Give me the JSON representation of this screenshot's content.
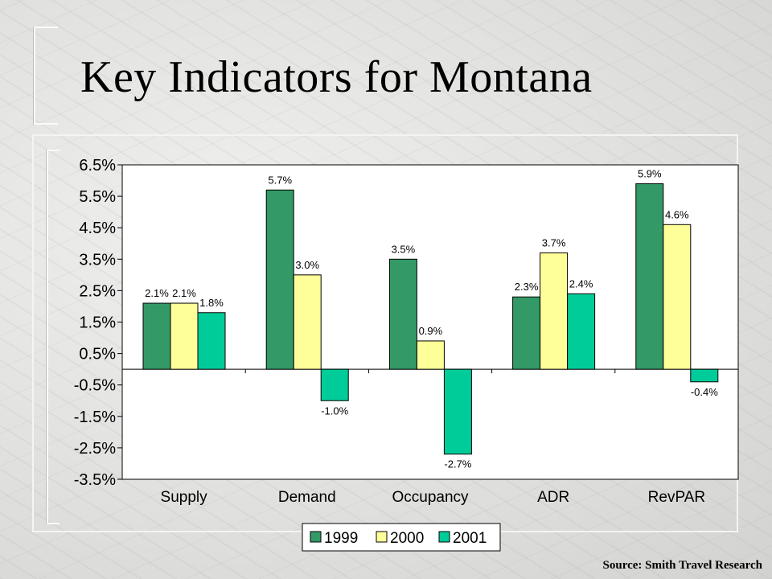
{
  "title": "Key Indicators for Montana",
  "source": "Source: Smith Travel Research",
  "colors": {
    "1999": "#339966",
    "2000": "#ffff99",
    "2001": "#00cc99"
  },
  "chart_data": {
    "type": "bar",
    "categories": [
      "Supply",
      "Demand",
      "Occupancy",
      "ADR",
      "RevPAR"
    ],
    "series": [
      {
        "name": "1999",
        "values": [
          2.1,
          5.7,
          3.5,
          2.3,
          5.9
        ],
        "labels": [
          "2.1%",
          "5.7%",
          "3.5%",
          "2.3%",
          "5.9%"
        ]
      },
      {
        "name": "2000",
        "values": [
          2.1,
          3.0,
          0.9,
          3.7,
          4.6
        ],
        "labels": [
          "2.1%",
          "3.0%",
          "0.9%",
          "3.7%",
          "4.6%"
        ]
      },
      {
        "name": "2001",
        "values": [
          1.8,
          -1.0,
          -2.7,
          2.4,
          -0.4
        ],
        "labels": [
          "1.8%",
          "-1.0%",
          "-2.7%",
          "2.4%",
          "-0.4%"
        ]
      }
    ],
    "yticks": [
      "6.5%",
      "5.5%",
      "4.5%",
      "3.5%",
      "2.5%",
      "1.5%",
      "0.5%",
      "-0.5%",
      "-1.5%",
      "-2.5%",
      "-3.5%"
    ],
    "ylim": [
      -3.5,
      6.5
    ],
    "xlabel": "",
    "ylabel": "",
    "legend_position": "bottom",
    "grid": false
  }
}
